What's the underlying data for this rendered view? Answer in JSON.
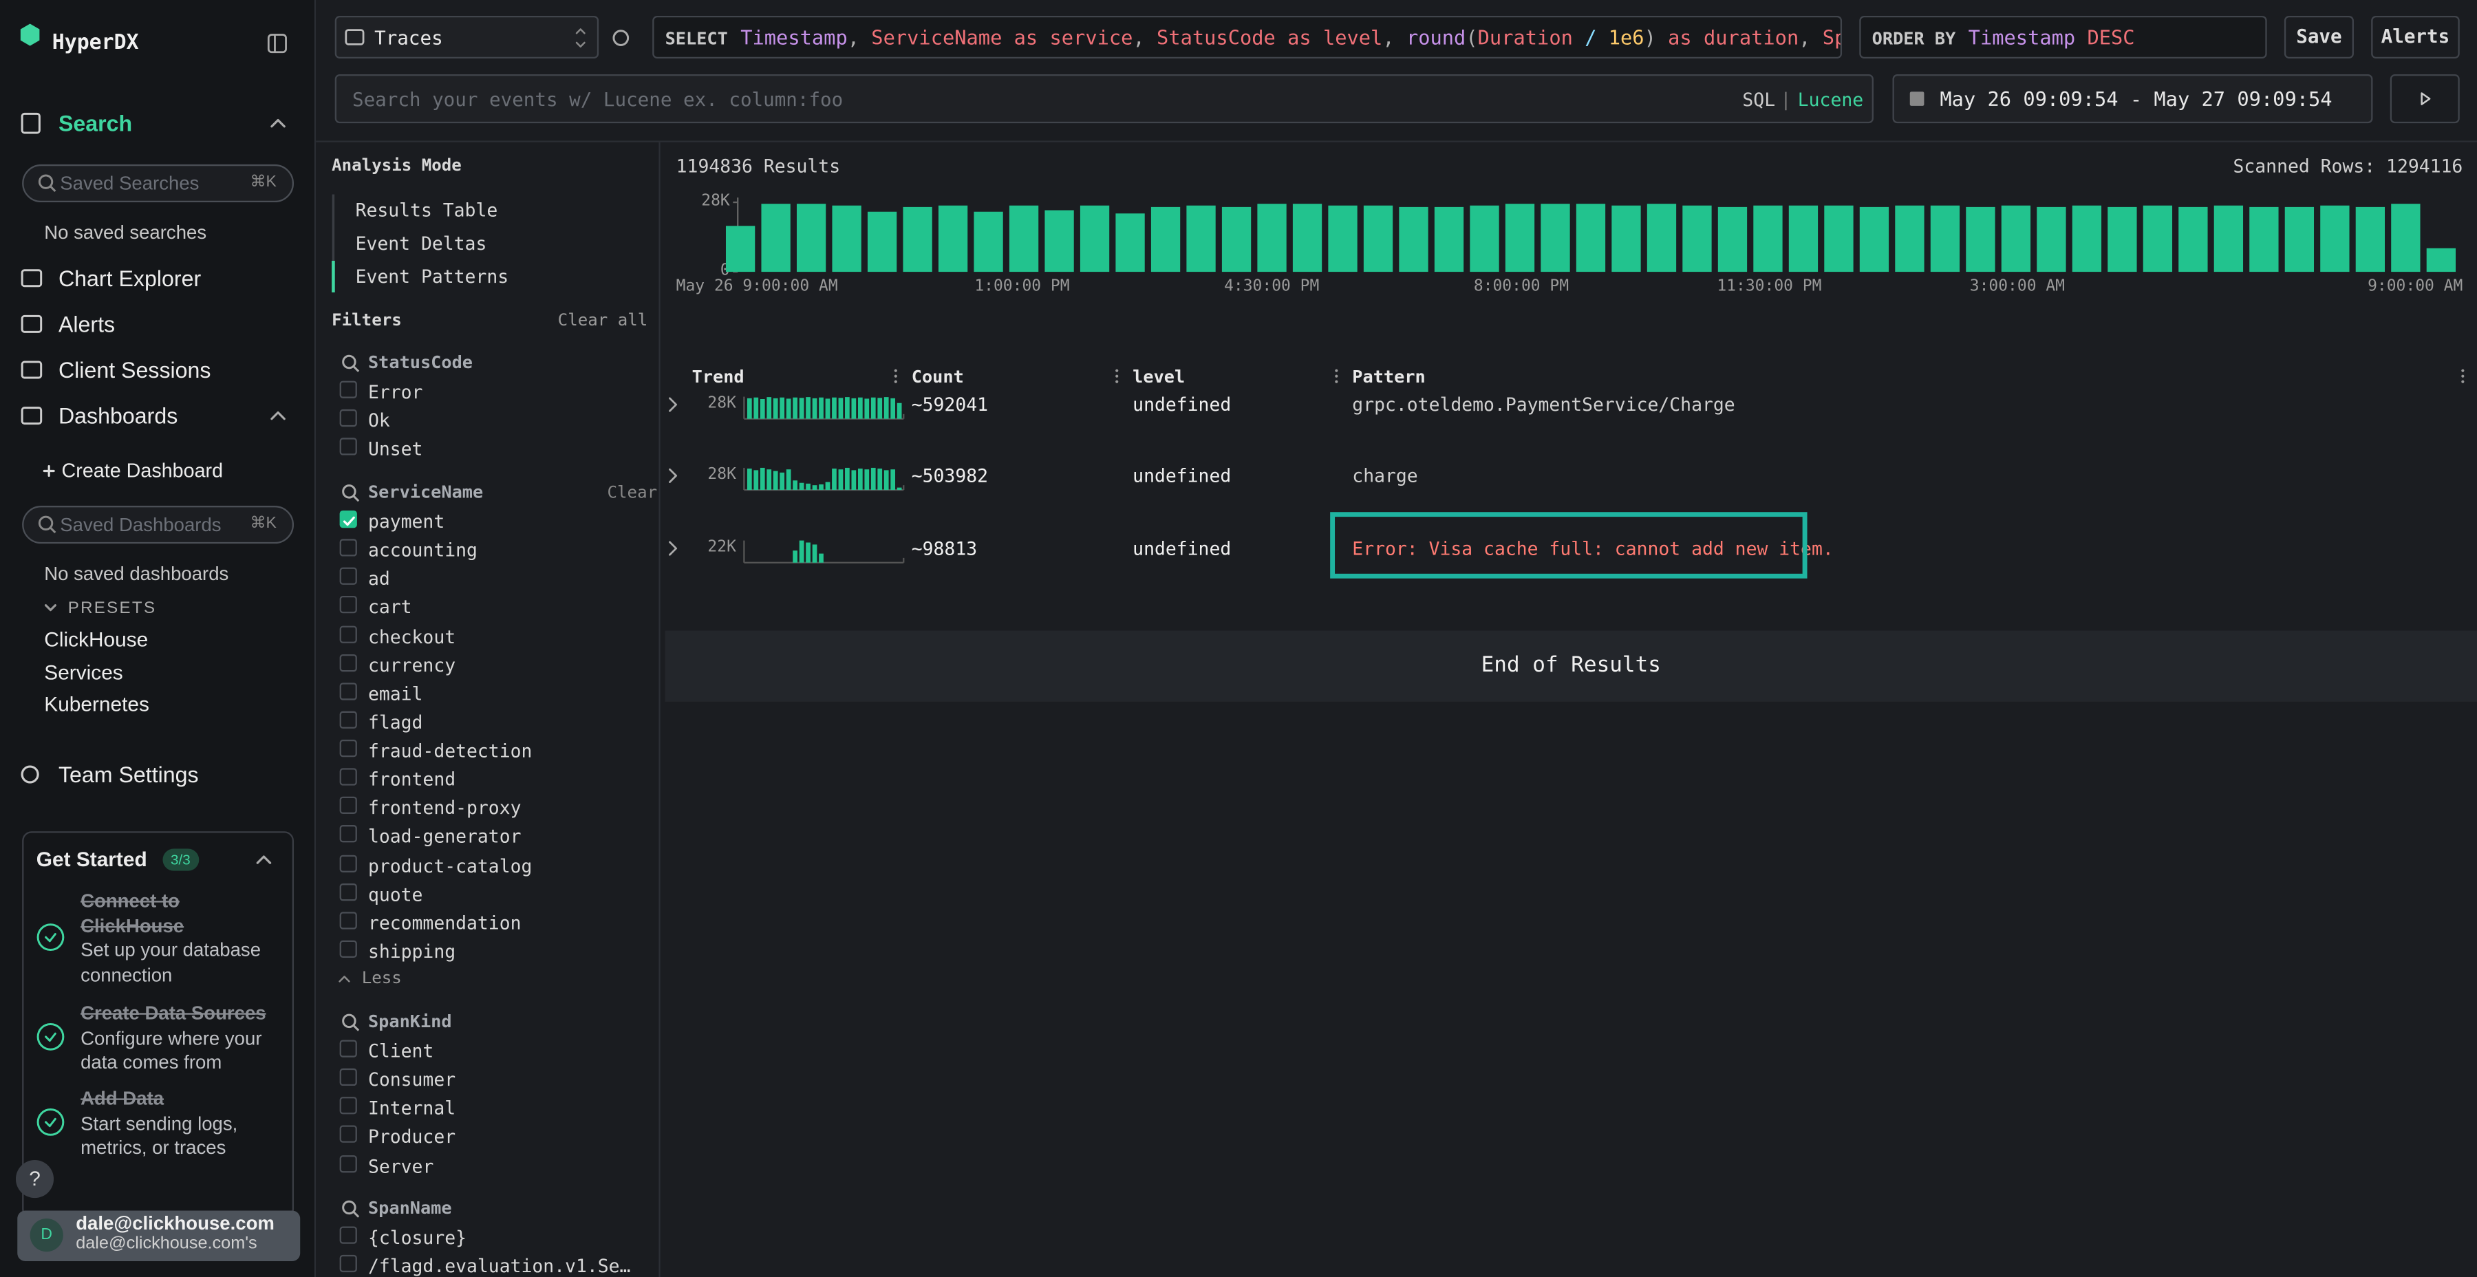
{
  "sidebar": {
    "brand": "HyperDX",
    "search": "Search",
    "saved_searches": {
      "placeholder": "Saved Searches",
      "shortcut": "⌘K"
    },
    "no_saved_searches": "No saved searches",
    "nav": [
      "Chart Explorer",
      "Alerts",
      "Client Sessions",
      "Dashboards"
    ],
    "create_dashboard": "Create Dashboard",
    "saved_dashboards": {
      "placeholder": "Saved Dashboards",
      "shortcut": "⌘K"
    },
    "no_saved_dashboards": "No saved dashboards",
    "presets": {
      "title": "PRESETS",
      "items": [
        "ClickHouse",
        "Services",
        "Kubernetes"
      ]
    },
    "team_settings": "Team Settings",
    "get_started": {
      "title": "Get Started",
      "progress": "3/3",
      "steps": [
        {
          "title": "Connect to ClickHouse",
          "description": "Set up your database connection"
        },
        {
          "title": "Create Data Sources",
          "description": "Configure where your data comes from"
        },
        {
          "title": "Add Data",
          "description": "Start sending logs, metrics, or traces"
        }
      ]
    },
    "help": "?",
    "user": {
      "initial": "D",
      "email": "dale@clickhouse.com",
      "team": "dale@clickhouse.com's"
    }
  },
  "topbar": {
    "source": "Traces",
    "select_keyword": "SELECT",
    "select_tokens": [
      {
        "text": "Timestamp",
        "color": "#c792ea"
      },
      {
        "text": ", ",
        "color": "#b0b0b0"
      },
      {
        "text": "ServiceName as service",
        "color": "#f07178"
      },
      {
        "text": ", ",
        "color": "#b0b0b0"
      },
      {
        "text": "StatusCode as level",
        "color": "#f07178"
      },
      {
        "text": ", ",
        "color": "#b0b0b0"
      },
      {
        "text": "round",
        "color": "#c792ea"
      },
      {
        "text": "(",
        "color": "#b0b0b0"
      },
      {
        "text": "Duration",
        "color": "#f07178"
      },
      {
        "text": " / ",
        "color": "#89ddff"
      },
      {
        "text": "1e6",
        "color": "#ffcb6b"
      },
      {
        "text": ")",
        "color": "#b0b0b0"
      },
      {
        "text": " as duration",
        "color": "#f07178"
      },
      {
        "text": ", ",
        "color": "#b0b0b0"
      },
      {
        "text": "Span",
        "color": "#f07178"
      }
    ],
    "order_keyword": "ORDER BY",
    "order_tokens": [
      {
        "text": "Timestamp",
        "color": "#c792ea"
      },
      {
        "text": " DESC",
        "color": "#f07178"
      }
    ],
    "save": "Save",
    "alerts": "Alerts",
    "search_placeholder": "Search your events w/ Lucene ex. column:foo",
    "language": {
      "sql": "SQL",
      "separator": "|",
      "lucene": "Lucene"
    },
    "time_range": "May 26 09:09:54 - May 27 09:09:54"
  },
  "filters_panel": {
    "analysis_mode": {
      "title": "Analysis Mode",
      "options": [
        "Results Table",
        "Event Deltas",
        "Event Patterns"
      ],
      "active": 2
    },
    "title": "Filters",
    "clear_all": "Clear all",
    "groups": [
      {
        "name": "StatusCode",
        "items": [
          {
            "label": "Error"
          },
          {
            "label": "Ok"
          },
          {
            "label": "Unset"
          }
        ]
      },
      {
        "name": "ServiceName",
        "clear": "Clear",
        "items": [
          {
            "label": "payment",
            "checked": true
          },
          {
            "label": "accounting"
          },
          {
            "label": "ad"
          },
          {
            "label": "cart"
          },
          {
            "label": "checkout"
          },
          {
            "label": "currency"
          },
          {
            "label": "email"
          },
          {
            "label": "flagd"
          },
          {
            "label": "fraud-detection"
          },
          {
            "label": "frontend"
          },
          {
            "label": "frontend-proxy"
          },
          {
            "label": "load-generator"
          },
          {
            "label": "product-catalog"
          },
          {
            "label": "quote"
          },
          {
            "label": "recommendation"
          },
          {
            "label": "shipping"
          }
        ],
        "less": "Less"
      },
      {
        "name": "SpanKind",
        "items": [
          {
            "label": "Client"
          },
          {
            "label": "Consumer"
          },
          {
            "label": "Internal"
          },
          {
            "label": "Producer"
          },
          {
            "label": "Server"
          }
        ]
      },
      {
        "name": "SpanName",
        "items": [
          {
            "label": "{closure}"
          },
          {
            "label": "/flagd.evaluation.v1.Se…"
          }
        ]
      }
    ]
  },
  "results": {
    "count": "1194836 Results",
    "scanned": "Scanned Rows: 1294116",
    "histogram": {
      "type": "bar",
      "color": "#22c38e",
      "ylim": [
        0,
        28000
      ],
      "yticks": [
        0,
        {
          "value": 28000,
          "label": "28K"
        }
      ],
      "values": [
        18500,
        27400,
        27400,
        26700,
        24200,
        26100,
        26700,
        24200,
        26700,
        24800,
        26700,
        23500,
        26100,
        26700,
        26100,
        27400,
        27400,
        26700,
        26700,
        26100,
        26100,
        26700,
        27400,
        27400,
        27400,
        26700,
        27400,
        26700,
        26100,
        26700,
        26700,
        26700,
        26100,
        26700,
        26700,
        26100,
        26700,
        26100,
        26700,
        26100,
        26700,
        26100,
        26700,
        26100,
        26100,
        26700,
        26100,
        27400,
        9500
      ],
      "x_labels": [
        "May 26 9:00:00 AM",
        "1:00:00 PM",
        "4:30:00 PM",
        "8:00:00 PM",
        "11:30:00 PM",
        "3:00:00 AM",
        "9:00:00 AM"
      ]
    },
    "table": {
      "columns": [
        "Trend",
        "Count",
        "level",
        "Pattern"
      ],
      "rows": [
        {
          "trend": {
            "max": {
              "value": 28000,
              "label": "28K"
            },
            "values": [
              26000,
              27000,
              25000,
              27500,
              26000,
              27000,
              25500,
              27000,
              26500,
              27500,
              26000,
              27000,
              25500,
              27000,
              26500,
              27500,
              26000,
              27000,
              25500,
              27000,
              26500,
              27500,
              26000,
              20000
            ]
          },
          "count": "~592041",
          "level": "undefined",
          "pattern": "grpc.oteldemo.PaymentService/Charge"
        },
        {
          "trend": {
            "max": {
              "value": 28000,
              "label": "28K"
            },
            "values": [
              27000,
              25000,
              28000,
              26000,
              24000,
              22000,
              26000,
              12000,
              9000,
              8000,
              6000,
              7000,
              10000,
              27000,
              26000,
              28000,
              25000,
              27000,
              26000,
              28000,
              27000,
              25000,
              26000,
              3000
            ]
          },
          "count": "~503982",
          "level": "undefined",
          "pattern": "charge"
        },
        {
          "trend": {
            "max": {
              "value": 22000,
              "label": "22K"
            },
            "values": [
              0,
              0,
              0,
              0,
              0,
              0,
              0,
              12000,
              22000,
              20000,
              18000,
              9000,
              0,
              0,
              0,
              0,
              0,
              0,
              0,
              0,
              0,
              0,
              0,
              0
            ]
          },
          "count": "~98813",
          "level": "undefined",
          "pattern": "Error: Visa cache full: cannot add new item.",
          "pattern_color": "#ff7b72",
          "highlight": true
        }
      ]
    },
    "end": "End of Results"
  }
}
